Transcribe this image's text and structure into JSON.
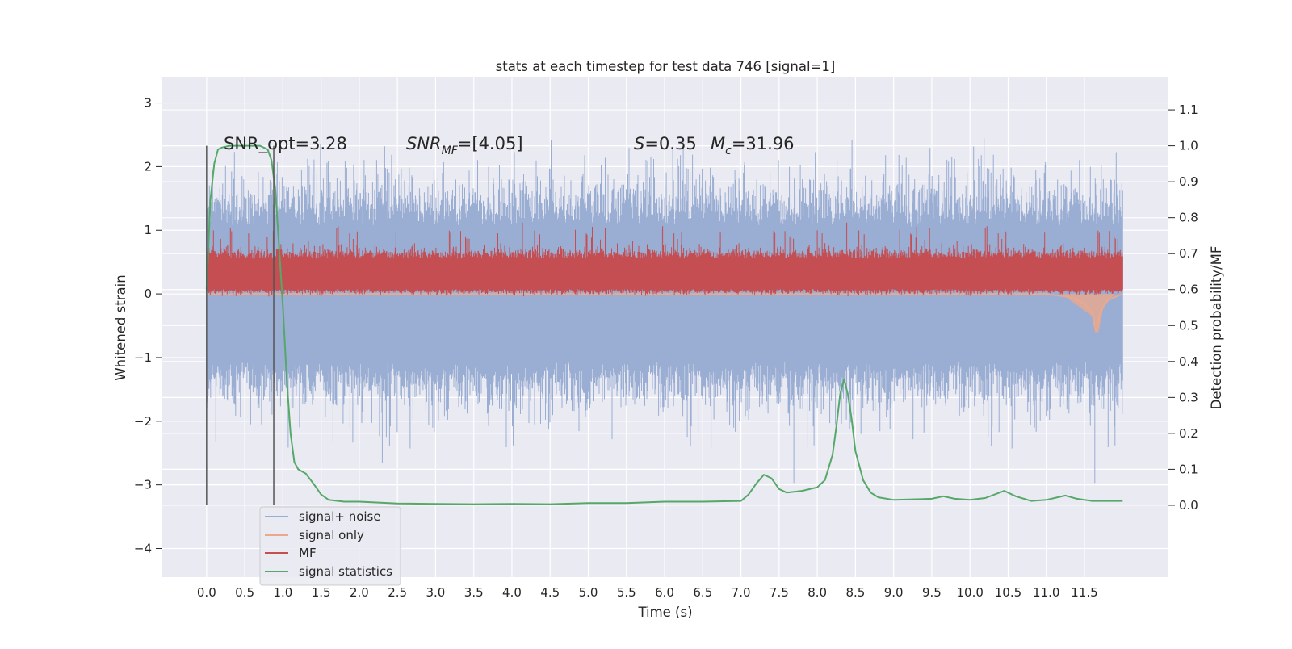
{
  "chart_data": {
    "type": "line",
    "title": "stats at each timestep for test data 746 [signal=1]",
    "xlabel": "Time (s)",
    "ylabel_left": "Whitened strain",
    "ylabel_right": "Detection probability/MF",
    "xlim": [
      -0.58,
      12.6
    ],
    "ylim_left": [
      -4.45,
      3.4
    ],
    "ylim_right": [
      -0.2,
      1.19
    ],
    "x_ticks": [
      "0.0",
      "0.5",
      "1.0",
      "1.5",
      "2.0",
      "2.5",
      "3.0",
      "3.5",
      "4.0",
      "4.5",
      "5.0",
      "5.5",
      "6.0",
      "6.5",
      "7.0",
      "7.5",
      "8.0",
      "8.5",
      "9.0",
      "9.5",
      "10.0",
      "10.5",
      "11.0",
      "11.5"
    ],
    "y_left_ticks": [
      "3",
      "2",
      "1",
      "0",
      "−1",
      "−2",
      "−3",
      "−4"
    ],
    "y_right_ticks": [
      "1.1",
      "1.0",
      "0.9",
      "0.8",
      "0.7",
      "0.6",
      "0.5",
      "0.4",
      "0.3",
      "0.2",
      "0.1",
      "0.0"
    ],
    "grid": true,
    "legend_position": "lower-left",
    "annotations": {
      "snr_opt": "SNR_opt=3.28",
      "snr_mf_base": "SNR",
      "snr_mf_sub": "MF",
      "snr_mf_value": "=[4.05]",
      "s_symbol": "S",
      "s_value": "=0.35",
      "mc_symbol": "M",
      "mc_sub": "c",
      "mc_value": "=31.96"
    },
    "vertical_markers_x": [
      0.0,
      0.88
    ],
    "series": [
      {
        "name": "signal+ noise",
        "axis": "left",
        "color": "#9aadd3",
        "description": "whitened strain time series 0-12 s, mean ~0, spread roughly -2.5..2.5",
        "band_envelope": {
          "x": [
            0.0,
            12.0
          ],
          "upper": 2.2,
          "lower": -2.2
        }
      },
      {
        "name": "signal only",
        "axis": "left",
        "color": "#e8a98f",
        "x": [
          0.0,
          11.0,
          11.3,
          11.5,
          11.6,
          11.65,
          11.7,
          11.8,
          12.0
        ],
        "y": [
          0.0,
          0.0,
          -0.05,
          -0.15,
          -0.3,
          -0.6,
          -0.3,
          -0.1,
          0.0
        ]
      },
      {
        "name": "MF",
        "axis": "left",
        "color": "#c44e52",
        "description": "matched-filter output 0-12 s, band roughly 0..0.8 with spikes to ~1.0"
      },
      {
        "name": "signal statistics",
        "axis": "right",
        "color": "#55a868",
        "x": [
          0.0,
          0.05,
          0.1,
          0.15,
          0.2,
          0.3,
          0.5,
          0.7,
          0.8,
          0.85,
          0.9,
          0.95,
          1.0,
          1.05,
          1.1,
          1.15,
          1.2,
          1.3,
          1.4,
          1.5,
          1.6,
          1.8,
          2.0,
          2.5,
          3.0,
          3.5,
          4.0,
          4.5,
          5.0,
          5.5,
          6.0,
          6.5,
          7.0,
          7.1,
          7.2,
          7.3,
          7.4,
          7.5,
          7.6,
          7.8,
          8.0,
          8.1,
          8.2,
          8.25,
          8.3,
          8.35,
          8.4,
          8.45,
          8.5,
          8.6,
          8.7,
          8.8,
          9.0,
          9.5,
          9.65,
          9.8,
          10.0,
          10.2,
          10.45,
          10.6,
          10.8,
          11.0,
          11.25,
          11.4,
          11.6,
          11.8,
          12.0
        ],
        "y": [
          0.6,
          0.85,
          0.95,
          0.99,
          0.995,
          1.0,
          1.0,
          1.0,
          0.99,
          0.96,
          0.88,
          0.72,
          0.55,
          0.35,
          0.2,
          0.12,
          0.1,
          0.088,
          0.06,
          0.03,
          0.015,
          0.01,
          0.01,
          0.005,
          0.004,
          0.003,
          0.004,
          0.003,
          0.006,
          0.006,
          0.01,
          0.01,
          0.012,
          0.03,
          0.06,
          0.085,
          0.075,
          0.045,
          0.035,
          0.04,
          0.05,
          0.07,
          0.14,
          0.22,
          0.31,
          0.35,
          0.31,
          0.24,
          0.15,
          0.07,
          0.035,
          0.022,
          0.015,
          0.018,
          0.025,
          0.018,
          0.015,
          0.02,
          0.04,
          0.025,
          0.012,
          0.015,
          0.027,
          0.018,
          0.012,
          0.012,
          0.012
        ]
      }
    ]
  }
}
